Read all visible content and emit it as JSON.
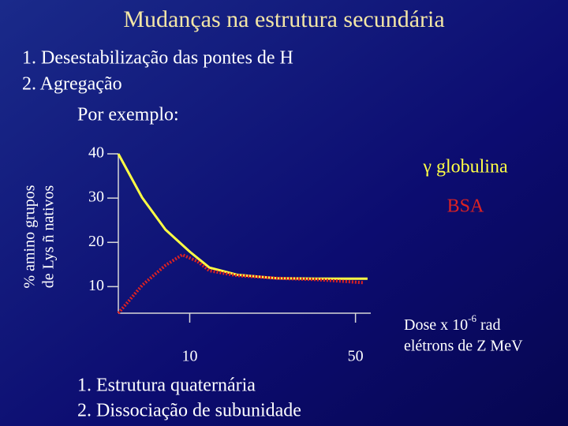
{
  "slide": {
    "title": "Mudanças na estrutura secundária",
    "lines": [
      "1. Desestabilização das pontes de H",
      "2. Agregação",
      "Por exemplo:"
    ],
    "footer": [
      "1. Estrutura quaternária",
      "2. Dissociação de subunidade"
    ]
  },
  "chart_data": {
    "type": "line",
    "ylabel": [
      "% amino grupos",
      "de  Lys ñ nativos"
    ],
    "xlabel": [
      "Dose x 10",
      "-6",
      " rad",
      "elétrons de Z MeV"
    ],
    "xscale": "log",
    "xlim": [
      5,
      58
    ],
    "xticks": [
      10,
      50
    ],
    "ylim": [
      4,
      40
    ],
    "yticks": [
      10,
      20,
      30,
      40
    ],
    "series": [
      {
        "name": "γ globulina",
        "color": "#ffff44",
        "style": "solid",
        "x": [
          5,
          6.3,
          7.9,
          10,
          12.1,
          15.8,
          23.3,
          34.1,
          56.2
        ],
        "values": [
          40,
          30.1,
          22.9,
          17.9,
          14.3,
          12.7,
          11.9,
          11.8,
          11.8
        ]
      },
      {
        "name": "BSA",
        "color": "#dd2222",
        "style": "dotted",
        "x": [
          5,
          6.3,
          7.9,
          9.3,
          10.8,
          12.1,
          15.8,
          23.3,
          34.1,
          54.1
        ],
        "values": [
          4.0,
          10.3,
          14.8,
          17.2,
          15.7,
          13.6,
          12.5,
          11.9,
          11.6,
          10.9
        ]
      }
    ]
  }
}
